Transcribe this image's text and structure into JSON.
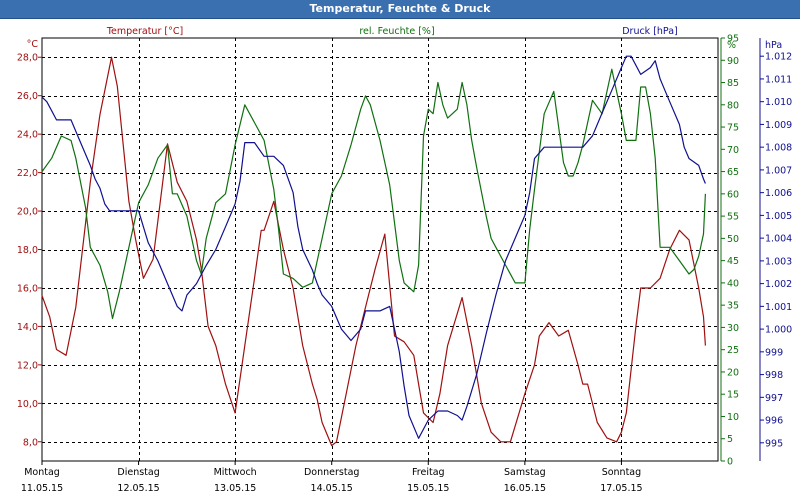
{
  "window": {
    "title": "Temperatur, Feuchte & Druck"
  },
  "colors": {
    "temperature": "#a01010",
    "humidity": "#107010",
    "pressure": "#101090",
    "title_bar": "#3a70b0"
  },
  "chart_data": {
    "type": "line",
    "title": "Temperatur, Feuchte & Druck",
    "grid": true,
    "x_range": [
      0,
      7
    ],
    "day_labels": [
      {
        "day": "Montag",
        "date": "11.05.15",
        "x": 0
      },
      {
        "day": "Dienstag",
        "date": "12.05.15",
        "x": 1
      },
      {
        "day": "Mittwoch",
        "date": "13.05.15",
        "x": 2
      },
      {
        "day": "Donnerstag",
        "date": "14.05.15",
        "x": 3
      },
      {
        "day": "Freitag",
        "date": "15.05.15",
        "x": 4
      },
      {
        "day": "Samstag",
        "date": "16.05.15",
        "x": 5
      },
      {
        "day": "Sonntag",
        "date": "17.05.15",
        "x": 6
      }
    ],
    "axes": {
      "temperature": {
        "label": "Temperatur [°C]",
        "unit": "°C",
        "range": [
          7,
          29
        ],
        "ticks": [
          "8,0",
          "10,0",
          "12,0",
          "14,0",
          "16,0",
          "18,0",
          "20,0",
          "22,0",
          "24,0",
          "26,0",
          "28,0"
        ]
      },
      "humidity": {
        "label": "rel. Feuchte [%]",
        "unit": "%",
        "range": [
          0,
          95
        ],
        "ticks": [
          "0",
          "5",
          "10",
          "15",
          "20",
          "25",
          "30",
          "35",
          "40",
          "45",
          "50",
          "55",
          "60",
          "65",
          "70",
          "75",
          "80",
          "85",
          "90",
          "95"
        ]
      },
      "pressure": {
        "label": "Druck [hPa]",
        "unit": "hPa",
        "range": [
          994.2,
          1012.8
        ],
        "ticks": [
          "995",
          "996",
          "997",
          "998",
          "999",
          "1.000",
          "1.001",
          "1.002",
          "1.003",
          "1.004",
          "1.005",
          "1.006",
          "1.007",
          "1.008",
          "1.009",
          "1.010",
          "1.011",
          "1.012"
        ]
      }
    },
    "series": [
      {
        "name": "Temperatur [°C]",
        "axis": "temperature",
        "x": [
          0.0,
          0.08,
          0.15,
          0.25,
          0.35,
          0.5,
          0.6,
          0.72,
          0.78,
          0.84,
          0.9,
          0.97,
          1.05,
          1.15,
          1.3,
          1.4,
          1.5,
          1.6,
          1.65,
          1.72,
          1.8,
          1.9,
          2.0,
          2.1,
          2.2,
          2.27,
          2.3,
          2.4,
          2.5,
          2.6,
          2.65,
          2.7,
          2.8,
          2.85,
          2.9,
          3.0,
          3.05,
          3.15,
          3.25,
          3.3,
          3.45,
          3.55,
          3.65,
          3.75,
          3.85,
          3.9,
          3.95,
          4.05,
          4.12,
          4.2,
          4.35,
          4.45,
          4.55,
          4.65,
          4.75,
          4.85,
          5.0,
          5.1,
          5.15,
          5.25,
          5.35,
          5.45,
          5.55,
          5.6,
          5.65,
          5.75,
          5.85,
          5.95,
          6.0,
          6.05,
          6.15,
          6.2,
          6.3,
          6.4,
          6.5,
          6.6,
          6.7,
          6.8,
          6.85,
          6.87
        ],
        "y": [
          15.6,
          14.5,
          12.8,
          12.5,
          15.0,
          21.5,
          25.0,
          28.0,
          26.5,
          23.5,
          20.5,
          18.5,
          16.5,
          17.5,
          23.5,
          21.5,
          20.5,
          18.5,
          17.0,
          14.0,
          13.0,
          11.0,
          9.5,
          13.0,
          16.5,
          19.0,
          19.0,
          20.5,
          18.0,
          16.0,
          14.5,
          13.0,
          11.0,
          10.2,
          9.0,
          7.8,
          8.0,
          10.5,
          13.0,
          14.0,
          17.0,
          18.8,
          13.5,
          13.2,
          12.5,
          11.0,
          9.5,
          9.0,
          10.5,
          13.0,
          15.5,
          13.0,
          10.0,
          8.5,
          8.0,
          8.0,
          10.5,
          12.0,
          13.5,
          14.2,
          13.5,
          13.8,
          12.0,
          11.0,
          11.0,
          9.0,
          8.2,
          8.0,
          8.5,
          9.5,
          14.0,
          16.0,
          16.0,
          16.5,
          18.0,
          19.0,
          18.5,
          16.0,
          14.5,
          13.0
        ]
      },
      {
        "name": "rel. Feuchte [%]",
        "axis": "humidity",
        "x": [
          0.0,
          0.1,
          0.2,
          0.3,
          0.35,
          0.45,
          0.5,
          0.6,
          0.68,
          0.73,
          0.8,
          0.9,
          1.0,
          1.1,
          1.2,
          1.3,
          1.35,
          1.4,
          1.5,
          1.6,
          1.65,
          1.7,
          1.8,
          1.9,
          2.0,
          2.1,
          2.2,
          2.3,
          2.4,
          2.45,
          2.5,
          2.6,
          2.7,
          2.8,
          2.9,
          3.0,
          3.1,
          3.2,
          3.3,
          3.35,
          3.4,
          3.5,
          3.6,
          3.7,
          3.75,
          3.85,
          3.9,
          3.95,
          4.0,
          4.05,
          4.1,
          4.15,
          4.2,
          4.3,
          4.35,
          4.4,
          4.45,
          4.5,
          4.6,
          4.65,
          4.7,
          4.8,
          4.9,
          5.0,
          5.05,
          5.1,
          5.2,
          5.3,
          5.4,
          5.45,
          5.5,
          5.55,
          5.6,
          5.7,
          5.8,
          5.9,
          6.0,
          6.05,
          6.15,
          6.2,
          6.25,
          6.3,
          6.35,
          6.4,
          6.5,
          6.6,
          6.7,
          6.75,
          6.8,
          6.85,
          6.87
        ],
        "y": [
          65,
          68,
          73,
          72,
          68,
          57,
          48,
          44,
          38,
          32,
          38,
          48,
          58,
          62,
          68,
          71,
          60,
          60,
          55,
          45,
          42,
          50,
          58,
          60,
          71,
          80,
          76,
          72,
          61,
          52,
          42,
          41,
          39,
          40,
          50,
          60,
          64,
          71,
          79,
          82,
          80,
          72,
          62,
          45,
          40,
          38,
          44,
          73,
          79,
          78,
          85,
          80,
          77,
          79,
          85,
          80,
          72,
          66,
          55,
          50,
          48,
          44,
          40,
          40,
          52,
          61,
          78,
          83,
          67,
          64,
          64,
          67,
          71,
          81,
          78,
          88,
          78,
          72,
          72,
          84,
          84,
          78,
          68,
          48,
          48,
          45,
          42,
          43,
          46,
          51,
          60
        ]
      },
      {
        "name": "Druck [hPa]",
        "axis": "pressure",
        "x": [
          0.0,
          0.05,
          0.1,
          0.15,
          0.2,
          0.3,
          0.4,
          0.5,
          0.55,
          0.6,
          0.65,
          0.7,
          0.75,
          0.8,
          0.9,
          1.0,
          1.05,
          1.1,
          1.2,
          1.3,
          1.4,
          1.45,
          1.5,
          1.6,
          1.7,
          1.8,
          1.9,
          2.0,
          2.05,
          2.1,
          2.2,
          2.3,
          2.4,
          2.5,
          2.6,
          2.65,
          2.7,
          2.8,
          2.85,
          2.9,
          3.0,
          3.1,
          3.2,
          3.3,
          3.35,
          3.4,
          3.5,
          3.6,
          3.7,
          3.75,
          3.8,
          3.9,
          4.0,
          4.1,
          4.2,
          4.3,
          4.35,
          4.4,
          4.5,
          4.6,
          4.7,
          4.8,
          4.9,
          5.0,
          5.05,
          5.1,
          5.2,
          5.3,
          5.4,
          5.5,
          5.55,
          5.6,
          5.7,
          5.8,
          5.9,
          6.0,
          6.05,
          6.1,
          6.2,
          6.3,
          6.35,
          6.4,
          6.45,
          6.5,
          6.6,
          6.65,
          6.7,
          6.8,
          6.85,
          6.87
        ],
        "y": [
          1010.2,
          1010.0,
          1009.6,
          1009.2,
          1009.2,
          1009.2,
          1008.2,
          1007.2,
          1006.6,
          1006.2,
          1005.5,
          1005.2,
          1005.2,
          1005.2,
          1005.2,
          1005.2,
          1004.5,
          1003.8,
          1003.0,
          1002.0,
          1001.0,
          1000.8,
          1001.5,
          1002.0,
          1002.8,
          1003.5,
          1004.5,
          1005.5,
          1006.5,
          1008.2,
          1008.2,
          1007.6,
          1007.6,
          1007.2,
          1006.0,
          1004.5,
          1003.5,
          1002.6,
          1002.0,
          1001.5,
          1001.0,
          1000.0,
          999.5,
          1000.0,
          1000.8,
          1000.8,
          1000.8,
          1001.0,
          999.0,
          997.5,
          996.2,
          995.2,
          996.0,
          996.4,
          996.4,
          996.2,
          996.0,
          996.6,
          998.0,
          999.8,
          1001.5,
          1003.0,
          1004.0,
          1005.0,
          1006.0,
          1007.5,
          1008.0,
          1008.0,
          1008.0,
          1008.0,
          1008.0,
          1008.0,
          1008.5,
          1009.5,
          1010.5,
          1011.5,
          1012.0,
          1012.0,
          1011.2,
          1011.5,
          1011.8,
          1011.0,
          1010.5,
          1010.0,
          1009.0,
          1008.0,
          1007.5,
          1007.2,
          1006.6,
          1006.4
        ]
      }
    ]
  }
}
